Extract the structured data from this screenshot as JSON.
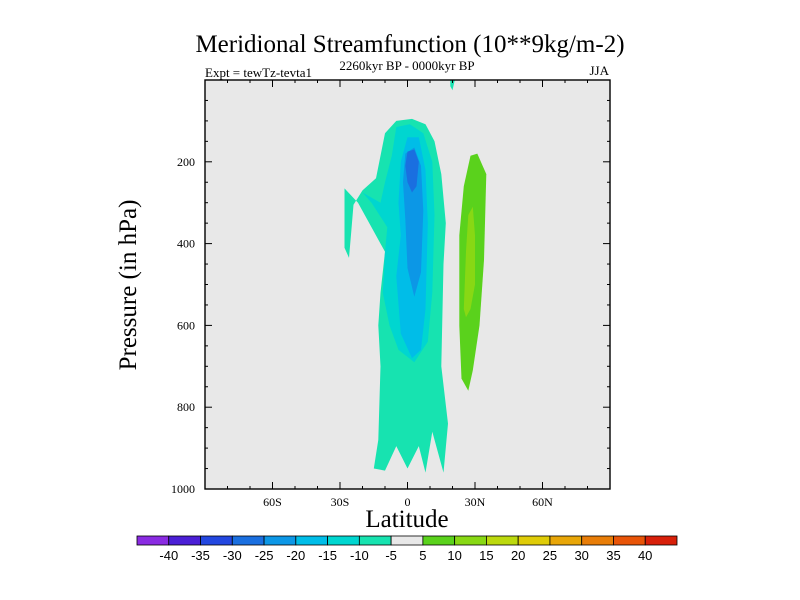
{
  "chart_data": {
    "type": "heatmap",
    "title": "Meridional Streamfunction (10**9kg/m-2)",
    "subtitle": "2260kyr BP - 0000kyr BP",
    "left_label": "Expt = tewTz-tevta1",
    "right_label": "JJA",
    "xlabel": "Latitude",
    "ylabel": "Pressure (in hPa)",
    "xlim": [
      -90,
      90
    ],
    "ylim": [
      1000,
      0
    ],
    "xticks": [
      {
        "value": -60,
        "label": "60S"
      },
      {
        "value": -30,
        "label": "30S"
      },
      {
        "value": 0,
        "label": "0"
      },
      {
        "value": 30,
        "label": "30N"
      },
      {
        "value": 60,
        "label": "60N"
      }
    ],
    "yticks": [
      {
        "value": 200,
        "label": "200"
      },
      {
        "value": 400,
        "label": "400"
      },
      {
        "value": 600,
        "label": "600"
      },
      {
        "value": 800,
        "label": "800"
      },
      {
        "value": 1000,
        "label": "1000"
      }
    ],
    "background_color": "#e8e8e8",
    "colorbar": {
      "labels": [
        "-40",
        "-35",
        "-30",
        "-25",
        "-20",
        "-15",
        "-10",
        "-5",
        "5",
        "10",
        "15",
        "20",
        "25",
        "30",
        "35",
        "40"
      ],
      "colors": [
        "#8a2be2",
        "#4b1fd6",
        "#2347e0",
        "#1a6fe0",
        "#0c97e6",
        "#00bde8",
        "#00d6d0",
        "#17e3b0",
        "#e8e8e8",
        "#5ad21c",
        "#88d814",
        "#bcd90e",
        "#dfcc08",
        "#e8a608",
        "#e87d08",
        "#e85408",
        "#d8200a"
      ]
    },
    "contours": [
      {
        "name": "band-minus5-main",
        "color": "#17e3b0",
        "points": [
          [
            -15,
            950
          ],
          [
            -13,
            880
          ],
          [
            -12,
            700
          ],
          [
            -13,
            600
          ],
          [
            -12,
            520
          ],
          [
            -10,
            420
          ],
          [
            -16,
            360
          ],
          [
            -22,
            300
          ],
          [
            -28,
            265
          ],
          [
            -28,
            410
          ],
          [
            -26,
            435
          ],
          [
            -25,
            370
          ],
          [
            -24,
            305
          ],
          [
            -20,
            270
          ],
          [
            -14,
            240
          ],
          [
            -10,
            130
          ],
          [
            -5,
            100
          ],
          [
            2,
            95
          ],
          [
            8,
            108
          ],
          [
            12,
            150
          ],
          [
            15,
            230
          ],
          [
            17,
            350
          ],
          [
            16,
            450
          ],
          [
            15,
            700
          ],
          [
            18,
            840
          ],
          [
            16,
            960
          ],
          [
            11,
            860
          ],
          [
            8,
            960
          ],
          [
            5,
            895
          ],
          [
            0,
            950
          ],
          [
            -5,
            895
          ],
          [
            -10,
            955
          ]
        ]
      },
      {
        "name": "band-minus5-top",
        "color": "#17e3b0",
        "points": [
          [
            19,
            0
          ],
          [
            21,
            0
          ],
          [
            20,
            25
          ],
          [
            19,
            15
          ]
        ]
      },
      {
        "name": "band-minus10",
        "color": "#00d6d0",
        "points": [
          [
            -12,
            300
          ],
          [
            -10,
            250
          ],
          [
            -7,
            185
          ],
          [
            -5,
            115
          ],
          [
            1,
            108
          ],
          [
            7,
            130
          ],
          [
            11,
            200
          ],
          [
            12,
            330
          ],
          [
            11,
            520
          ],
          [
            9,
            640
          ],
          [
            3,
            690
          ],
          [
            -4,
            660
          ],
          [
            -8,
            600
          ],
          [
            -11,
            520
          ],
          [
            -10,
            420
          ],
          [
            -9,
            360
          ],
          [
            -16,
            300
          ],
          [
            -20,
            275
          ]
        ]
      },
      {
        "name": "band-minus15",
        "color": "#00bde8",
        "points": [
          [
            -4,
            300
          ],
          [
            -3,
            200
          ],
          [
            0,
            140
          ],
          [
            5,
            140
          ],
          [
            8,
            220
          ],
          [
            9,
            350
          ],
          [
            8,
            560
          ],
          [
            6,
            660
          ],
          [
            2,
            680
          ],
          [
            -3,
            620
          ],
          [
            -5,
            480
          ],
          [
            -3,
            380
          ]
        ]
      },
      {
        "name": "band-minus20",
        "color": "#0c97e6",
        "points": [
          [
            -2,
            250
          ],
          [
            -1,
            180
          ],
          [
            3,
            165
          ],
          [
            6,
            210
          ],
          [
            7,
            320
          ],
          [
            6,
            470
          ],
          [
            3,
            530
          ],
          [
            0,
            460
          ],
          [
            -1,
            340
          ]
        ]
      },
      {
        "name": "band-minus25",
        "color": "#1a6fe0",
        "points": [
          [
            -1,
            210
          ],
          [
            0,
            175
          ],
          [
            3,
            170
          ],
          [
            5,
            200
          ],
          [
            4,
            260
          ],
          [
            2,
            275
          ],
          [
            0,
            250
          ]
        ]
      },
      {
        "name": "band-plus5",
        "color": "#5ad21c",
        "points": [
          [
            24,
            730
          ],
          [
            23,
            600
          ],
          [
            23,
            380
          ],
          [
            25,
            260
          ],
          [
            28,
            185
          ],
          [
            31,
            180
          ],
          [
            35,
            230
          ],
          [
            34,
            440
          ],
          [
            32,
            600
          ],
          [
            29,
            710
          ],
          [
            27,
            760
          ]
        ]
      },
      {
        "name": "band-plus10",
        "color": "#88d814",
        "points": [
          [
            25,
            560
          ],
          [
            26,
            420
          ],
          [
            27,
            330
          ],
          [
            29,
            310
          ],
          [
            30,
            380
          ],
          [
            30,
            500
          ],
          [
            28,
            560
          ],
          [
            26,
            580
          ]
        ]
      }
    ]
  }
}
